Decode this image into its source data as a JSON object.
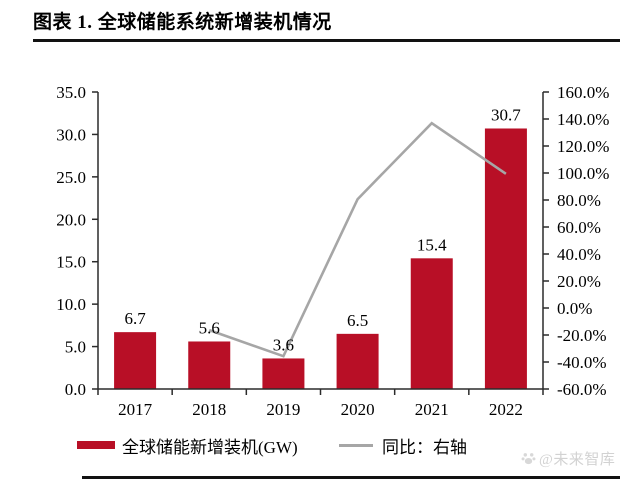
{
  "header": {
    "title": "图表 1. 全球储能系统新增装机情况"
  },
  "colors": {
    "bar": "#B80F26",
    "line": "#A6A6A6",
    "axis": "#2b2b2b",
    "watermark": "#d2d2d2"
  },
  "watermark": {
    "text": "@未来智库"
  },
  "chart_data": {
    "type": "combo",
    "title": "全球储能系统新增装机情况",
    "categories": [
      "2017",
      "2018",
      "2019",
      "2020",
      "2021",
      "2022"
    ],
    "series": [
      {
        "name": "全球储能新增装机(GW)",
        "type": "bar",
        "axis": "left",
        "unit": "GW",
        "values": [
          6.7,
          5.6,
          3.6,
          6.5,
          15.4,
          30.7
        ],
        "labels": [
          "6.7",
          "5.6",
          "3.6",
          "6.5",
          "15.4",
          "30.7"
        ],
        "color": "#B80F26"
      },
      {
        "name": "同比：右轴",
        "type": "line",
        "axis": "right",
        "unit": "%",
        "values": [
          null,
          -16.4,
          -35.7,
          80.6,
          136.9,
          99.4
        ],
        "color": "#A6A6A6"
      }
    ],
    "left_axis": {
      "min": 0,
      "max": 35,
      "step": 5,
      "labels": [
        "0.0",
        "5.0",
        "10.0",
        "15.0",
        "20.0",
        "25.0",
        "30.0",
        "35.0"
      ]
    },
    "right_axis": {
      "min": -60,
      "max": 160,
      "step": 20,
      "labels": [
        "-60.0%",
        "-40.0%",
        "-20.0%",
        "0.0%",
        "20.0%",
        "40.0%",
        "60.0%",
        "80.0%",
        "100.0%",
        "120.0%",
        "140.0%",
        "160.0%"
      ]
    },
    "grid": false,
    "legend_position": "bottom"
  }
}
